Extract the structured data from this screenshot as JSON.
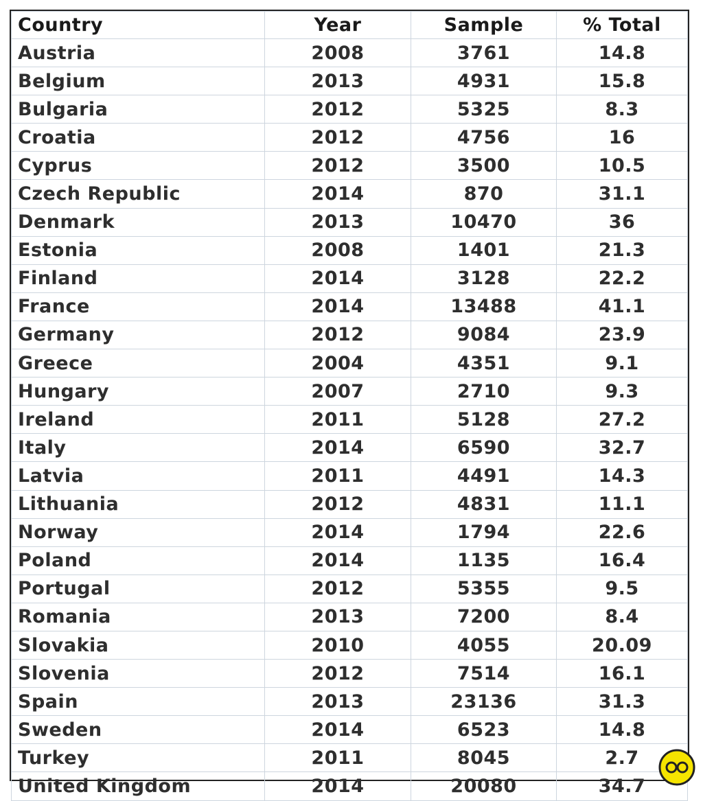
{
  "table": {
    "header": [
      "Country",
      "Year",
      "Sample",
      "% Total"
    ],
    "rows": [
      [
        "Austria",
        "2008",
        "3761",
        "14.8"
      ],
      [
        "Belgium",
        "2013",
        "4931",
        "15.8"
      ],
      [
        "Bulgaria",
        "2012",
        "5325",
        "8.3"
      ],
      [
        "Croatia",
        "2012",
        "4756",
        "16"
      ],
      [
        "Cyprus",
        "2012",
        "3500",
        "10.5"
      ],
      [
        "Czech Republic",
        "2014",
        "870",
        "31.1"
      ],
      [
        "Denmark",
        "2013",
        "10470",
        "36"
      ],
      [
        "Estonia",
        "2008",
        "1401",
        "21.3"
      ],
      [
        "Finland",
        "2014",
        "3128",
        "22.2"
      ],
      [
        "France",
        "2014",
        "13488",
        "41.1"
      ],
      [
        "Germany",
        "2012",
        "9084",
        "23.9"
      ],
      [
        "Greece",
        "2004",
        "4351",
        "9.1"
      ],
      [
        "Hungary",
        "2007",
        "2710",
        "9.3"
      ],
      [
        "Ireland",
        "2011",
        "5128",
        "27.2"
      ],
      [
        "Italy",
        "2014",
        "6590",
        "32.7"
      ],
      [
        "Latvia",
        "2011",
        "4491",
        "14.3"
      ],
      [
        "Lithuania",
        "2012",
        "4831",
        "11.1"
      ],
      [
        "Norway",
        "2014",
        "1794",
        "22.6"
      ],
      [
        "Poland",
        "2014",
        "1135",
        "16.4"
      ],
      [
        "Portugal",
        "2012",
        "5355",
        "9.5"
      ],
      [
        "Romania",
        "2013",
        "7200",
        "8.4"
      ],
      [
        "Slovakia",
        "2010",
        "4055",
        "20.09"
      ],
      [
        "Slovenia",
        "2012",
        "7514",
        "16.1"
      ],
      [
        "Spain",
        "2013",
        "23136",
        "31.3"
      ],
      [
        "Sweden",
        "2014",
        "6523",
        "14.8"
      ],
      [
        "Turkey",
        "2011",
        "8045",
        "2.7"
      ],
      [
        "United Kingdom",
        "2014",
        "20080",
        "34.7"
      ]
    ]
  }
}
